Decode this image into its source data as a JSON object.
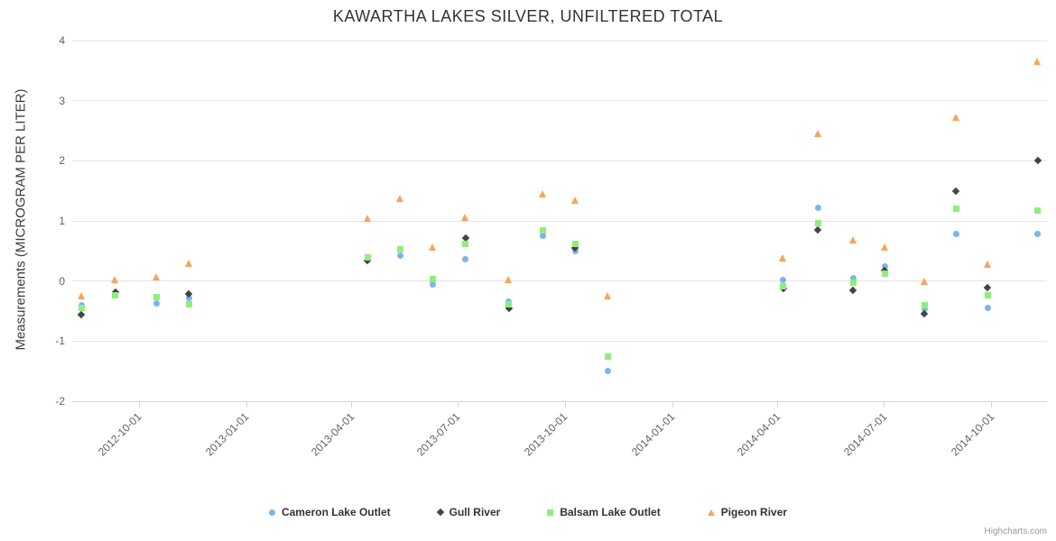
{
  "credit": "Highcharts.com",
  "chart_data": {
    "type": "scatter",
    "title": "KAWARTHA LAKES SILVER, UNFILTERED TOTAL",
    "xlabel": "",
    "ylabel": "Measurements (MICROGRAM PER LITER)",
    "ylim": [
      -2,
      4
    ],
    "y_ticks": [
      -2,
      -1,
      0,
      1,
      2,
      3,
      4
    ],
    "x_ticks": [
      "2012-10-01",
      "2013-01-01",
      "2013-04-01",
      "2013-07-01",
      "2013-10-01",
      "2014-01-01",
      "2014-04-01",
      "2014-07-01",
      "2014-10-01"
    ],
    "x_range": [
      "2012-08-05",
      "2014-11-18"
    ],
    "grid": true,
    "legend_position": "bottom-center",
    "series": [
      {
        "name": "Cameron Lake Outlet",
        "marker": "circle",
        "color": "#7cb5ec",
        "points": [
          [
            "2012-08-13",
            -0.4
          ],
          [
            "2012-10-16",
            -0.37
          ],
          [
            "2012-11-13",
            -0.28
          ],
          [
            "2013-05-13",
            0.43
          ],
          [
            "2013-06-10",
            -0.06
          ],
          [
            "2013-07-08",
            0.37
          ],
          [
            "2013-08-14",
            -0.34
          ],
          [
            "2013-09-12",
            0.76
          ],
          [
            "2013-10-10",
            0.5
          ],
          [
            "2013-11-07",
            -1.5
          ],
          [
            "2014-04-06",
            0.02
          ],
          [
            "2014-05-06",
            1.22
          ],
          [
            "2014-06-05",
            0.05
          ],
          [
            "2014-07-02",
            0.24
          ],
          [
            "2014-08-05",
            -0.46
          ],
          [
            "2014-09-01",
            0.78
          ],
          [
            "2014-09-28",
            -0.44
          ],
          [
            "2014-11-10",
            0.78
          ]
        ]
      },
      {
        "name": "Gull River",
        "marker": "diamond",
        "color": "#434348",
        "points": [
          [
            "2012-08-13",
            -0.56
          ],
          [
            "2012-09-11",
            -0.18
          ],
          [
            "2012-11-13",
            -0.21
          ],
          [
            "2013-04-15",
            0.34
          ],
          [
            "2013-07-08",
            0.72
          ],
          [
            "2013-08-14",
            -0.45
          ],
          [
            "2013-10-10",
            0.55
          ],
          [
            "2014-04-06",
            -0.13
          ],
          [
            "2014-05-06",
            0.85
          ],
          [
            "2014-06-05",
            -0.16
          ],
          [
            "2014-07-02",
            0.18
          ],
          [
            "2014-08-05",
            -0.55
          ],
          [
            "2014-09-01",
            1.5
          ],
          [
            "2014-09-28",
            -0.11
          ],
          [
            "2014-11-10",
            2.0
          ]
        ]
      },
      {
        "name": "Balsam Lake Outlet",
        "marker": "square",
        "color": "#90ed7d",
        "points": [
          [
            "2012-08-13",
            -0.45
          ],
          [
            "2012-09-11",
            -0.24
          ],
          [
            "2012-10-16",
            -0.27
          ],
          [
            "2012-11-13",
            -0.38
          ],
          [
            "2013-04-15",
            0.4
          ],
          [
            "2013-05-13",
            0.53
          ],
          [
            "2013-06-10",
            0.04
          ],
          [
            "2013-07-08",
            0.62
          ],
          [
            "2013-08-14",
            -0.38
          ],
          [
            "2013-09-12",
            0.84
          ],
          [
            "2013-10-10",
            0.62
          ],
          [
            "2013-11-07",
            -1.25
          ],
          [
            "2014-04-06",
            -0.08
          ],
          [
            "2014-05-06",
            0.97
          ],
          [
            "2014-06-05",
            -0.02
          ],
          [
            "2014-07-02",
            0.12
          ],
          [
            "2014-08-05",
            -0.4
          ],
          [
            "2014-09-01",
            1.2
          ],
          [
            "2014-09-28",
            -0.23
          ],
          [
            "2014-11-10",
            1.18
          ]
        ]
      },
      {
        "name": "Pigeon River",
        "marker": "triangle",
        "color": "#f7a35c",
        "points": [
          [
            "2012-08-13",
            -0.25
          ],
          [
            "2012-09-11",
            0.03
          ],
          [
            "2012-10-16",
            0.07
          ],
          [
            "2012-11-13",
            0.3
          ],
          [
            "2013-04-15",
            1.05
          ],
          [
            "2013-05-13",
            1.38
          ],
          [
            "2013-06-10",
            0.56
          ],
          [
            "2013-07-08",
            1.06
          ],
          [
            "2013-08-14",
            0.03
          ],
          [
            "2013-09-12",
            1.45
          ],
          [
            "2013-10-10",
            1.35
          ],
          [
            "2013-11-07",
            -0.25
          ],
          [
            "2014-04-06",
            0.38
          ],
          [
            "2014-05-06",
            2.45
          ],
          [
            "2014-06-05",
            0.68
          ],
          [
            "2014-07-02",
            0.56
          ],
          [
            "2014-08-05",
            0.0
          ],
          [
            "2014-09-01",
            2.72
          ],
          [
            "2014-09-28",
            0.28
          ],
          [
            "2014-11-10",
            3.65
          ]
        ]
      }
    ]
  }
}
